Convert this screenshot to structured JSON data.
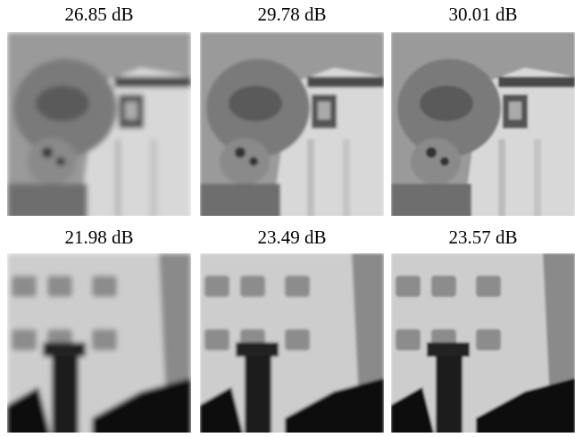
{
  "panels": [
    {
      "caption": "26.85 dB"
    },
    {
      "caption": "29.78 dB"
    },
    {
      "caption": "30.01 dB"
    },
    {
      "caption": "21.98 dB"
    },
    {
      "caption": "23.49 dB"
    },
    {
      "caption": "23.57 dB"
    }
  ]
}
